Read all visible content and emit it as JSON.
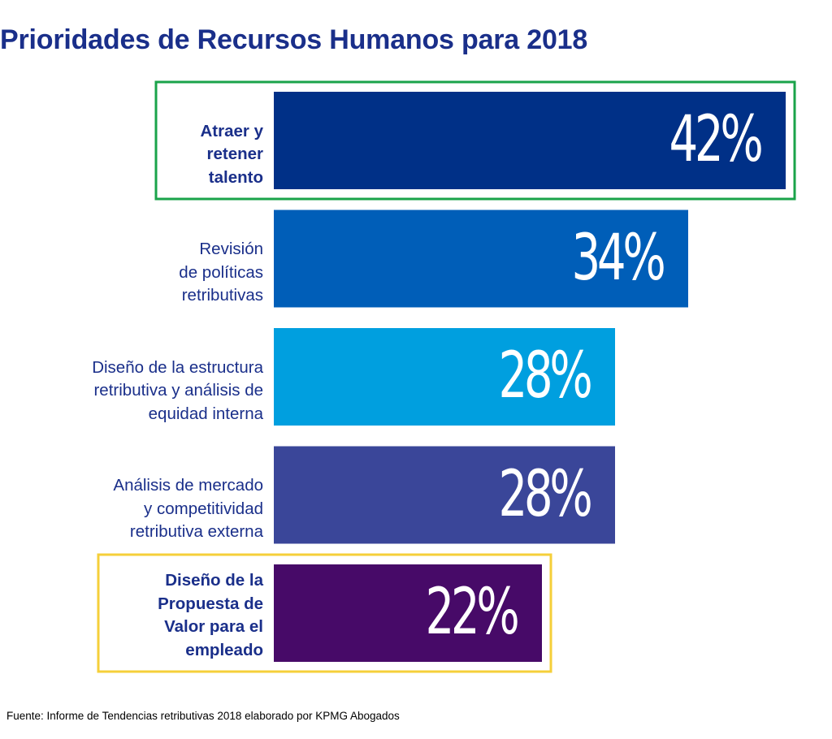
{
  "title": "Prioridades de Recursos Humanos para 2018",
  "source": "Fuente: Informe de Tendencias retributivas 2018 elaborado por KPMG Abogados",
  "chart_data": {
    "type": "bar",
    "orientation": "horizontal",
    "title": "Prioridades de Recursos Humanos para 2018",
    "categories": [
      "Atraer y retener talento",
      "Revisión de políticas retributivas",
      "Diseño de la estructura retributiva y análisis de equidad interna",
      "Análisis de mercado y competitividad retributiva externa",
      "Diseño de la Propuesta de Valor para el empleado"
    ],
    "category_lines": [
      [
        "Atraer y",
        "retener",
        "talento"
      ],
      [
        "Revisión",
        "de políticas",
        "retributivas"
      ],
      [
        "Diseño de la estructura",
        "retributiva y análisis de",
        "equidad interna"
      ],
      [
        "Análisis de mercado",
        "y competitividad",
        "retributiva externa"
      ],
      [
        "Diseño de la",
        "Propuesta de",
        "Valor para el",
        "empleado"
      ]
    ],
    "values": [
      42,
      34,
      28,
      28,
      22
    ],
    "value_labels": [
      "42%",
      "34%",
      "28%",
      "28%",
      "22%"
    ],
    "unit": "%",
    "bar_colors": [
      "#003087",
      "#005eb8",
      "#009fdf",
      "#3a4699",
      "#470a68"
    ],
    "bold_labels": [
      true,
      false,
      false,
      false,
      true
    ],
    "highlights": [
      {
        "category_index": 0,
        "color": "#1aa34a"
      },
      {
        "category_index": 4,
        "color": "#f5cf3a"
      }
    ],
    "xlabel": "",
    "ylabel": "",
    "grid": false,
    "legend": "none"
  },
  "colors": {
    "title": "#1a2f8a",
    "label_text": "#1a2f8a",
    "value_text": "#ffffff"
  }
}
